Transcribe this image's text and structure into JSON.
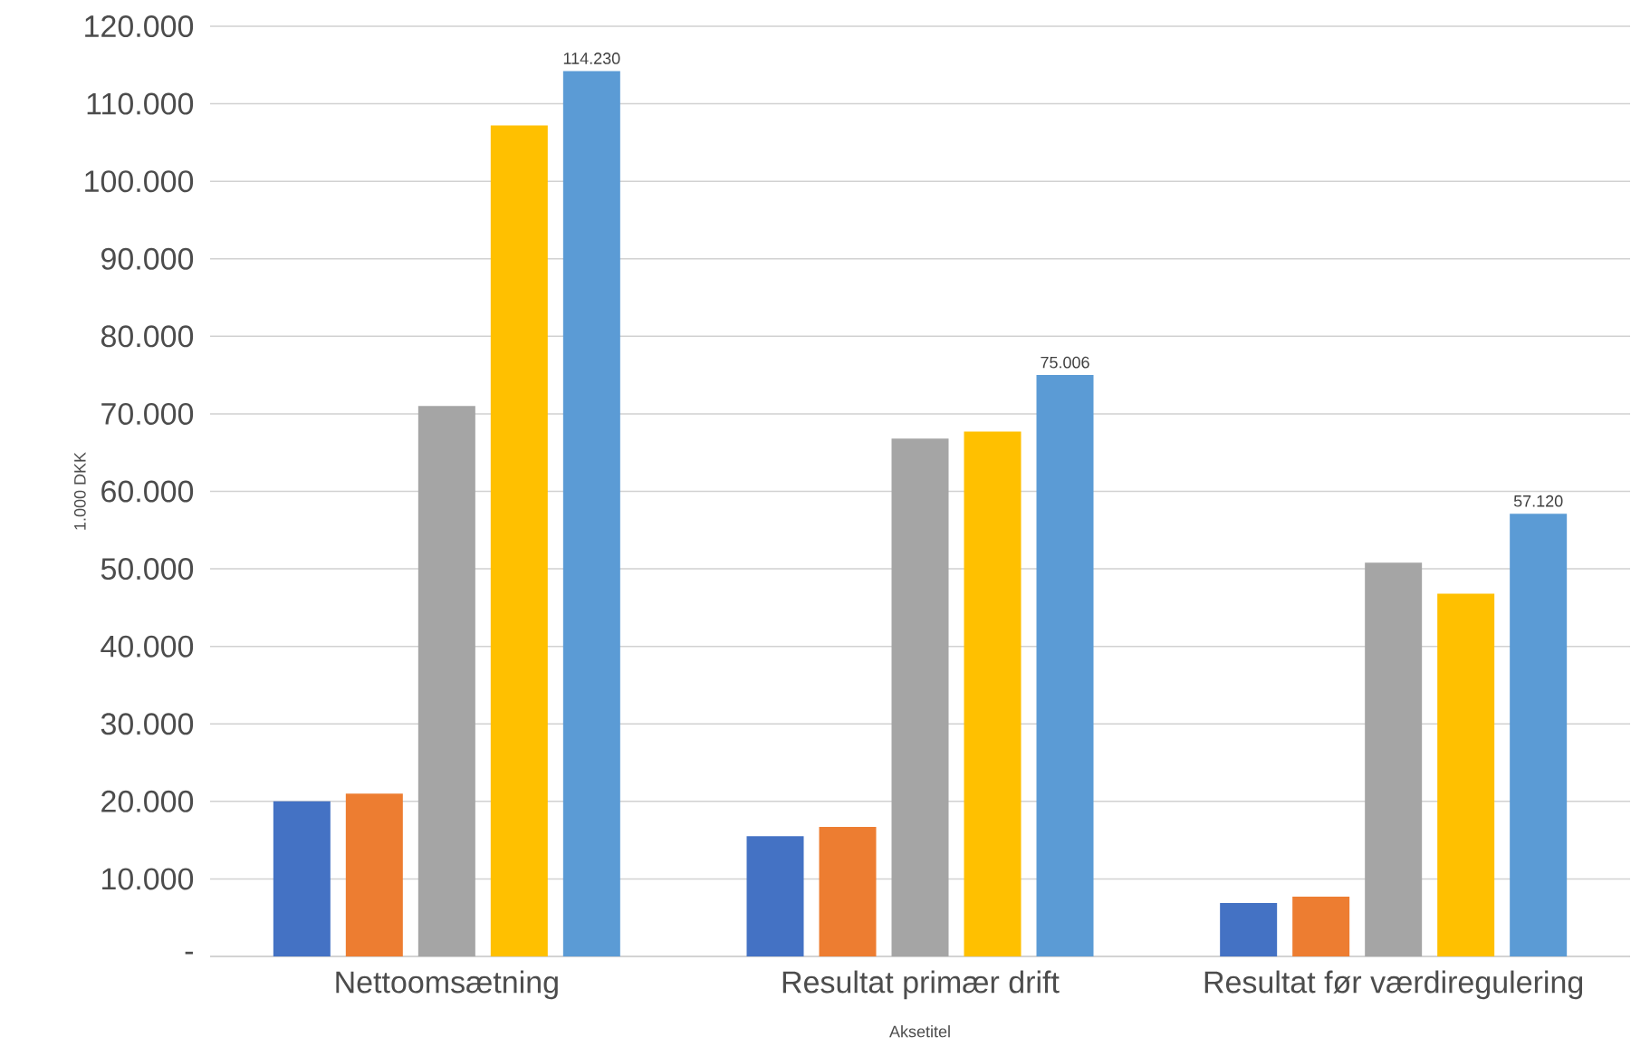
{
  "chart_data": {
    "type": "bar",
    "xlabel": "Aksetitel",
    "ylabel": "1.000 DKK",
    "categories": [
      "Nettoomsætning",
      "Resultat primær drift",
      "Resultat før værdiregulering"
    ],
    "series": [
      {
        "color": "#4472c4",
        "values": [
          20000,
          15500,
          6900
        ]
      },
      {
        "color": "#ed7d31",
        "values": [
          21000,
          16700,
          7700
        ]
      },
      {
        "color": "#a5a5a5",
        "values": [
          71000,
          66800,
          50800
        ]
      },
      {
        "color": "#ffc000",
        "values": [
          107200,
          67700,
          46800
        ]
      },
      {
        "color": "#5b9bd5",
        "values": [
          114230,
          75006,
          57120
        ],
        "value_labels": [
          "114.230",
          "75.006",
          "57.120"
        ]
      }
    ],
    "ylim": [
      0,
      120000
    ],
    "yticks": [
      {
        "value": 0,
        "label": "-"
      },
      {
        "value": 10000,
        "label": "10.000"
      },
      {
        "value": 20000,
        "label": "20.000"
      },
      {
        "value": 30000,
        "label": "30.000"
      },
      {
        "value": 40000,
        "label": "40.000"
      },
      {
        "value": 50000,
        "label": "50.000"
      },
      {
        "value": 60000,
        "label": "60.000"
      },
      {
        "value": 70000,
        "label": "70.000"
      },
      {
        "value": 80000,
        "label": "80.000"
      },
      {
        "value": 90000,
        "label": "90.000"
      },
      {
        "value": 100000,
        "label": "100.000"
      },
      {
        "value": 110000,
        "label": "110.000"
      },
      {
        "value": 120000,
        "label": "120.000"
      }
    ],
    "grid": "y"
  }
}
